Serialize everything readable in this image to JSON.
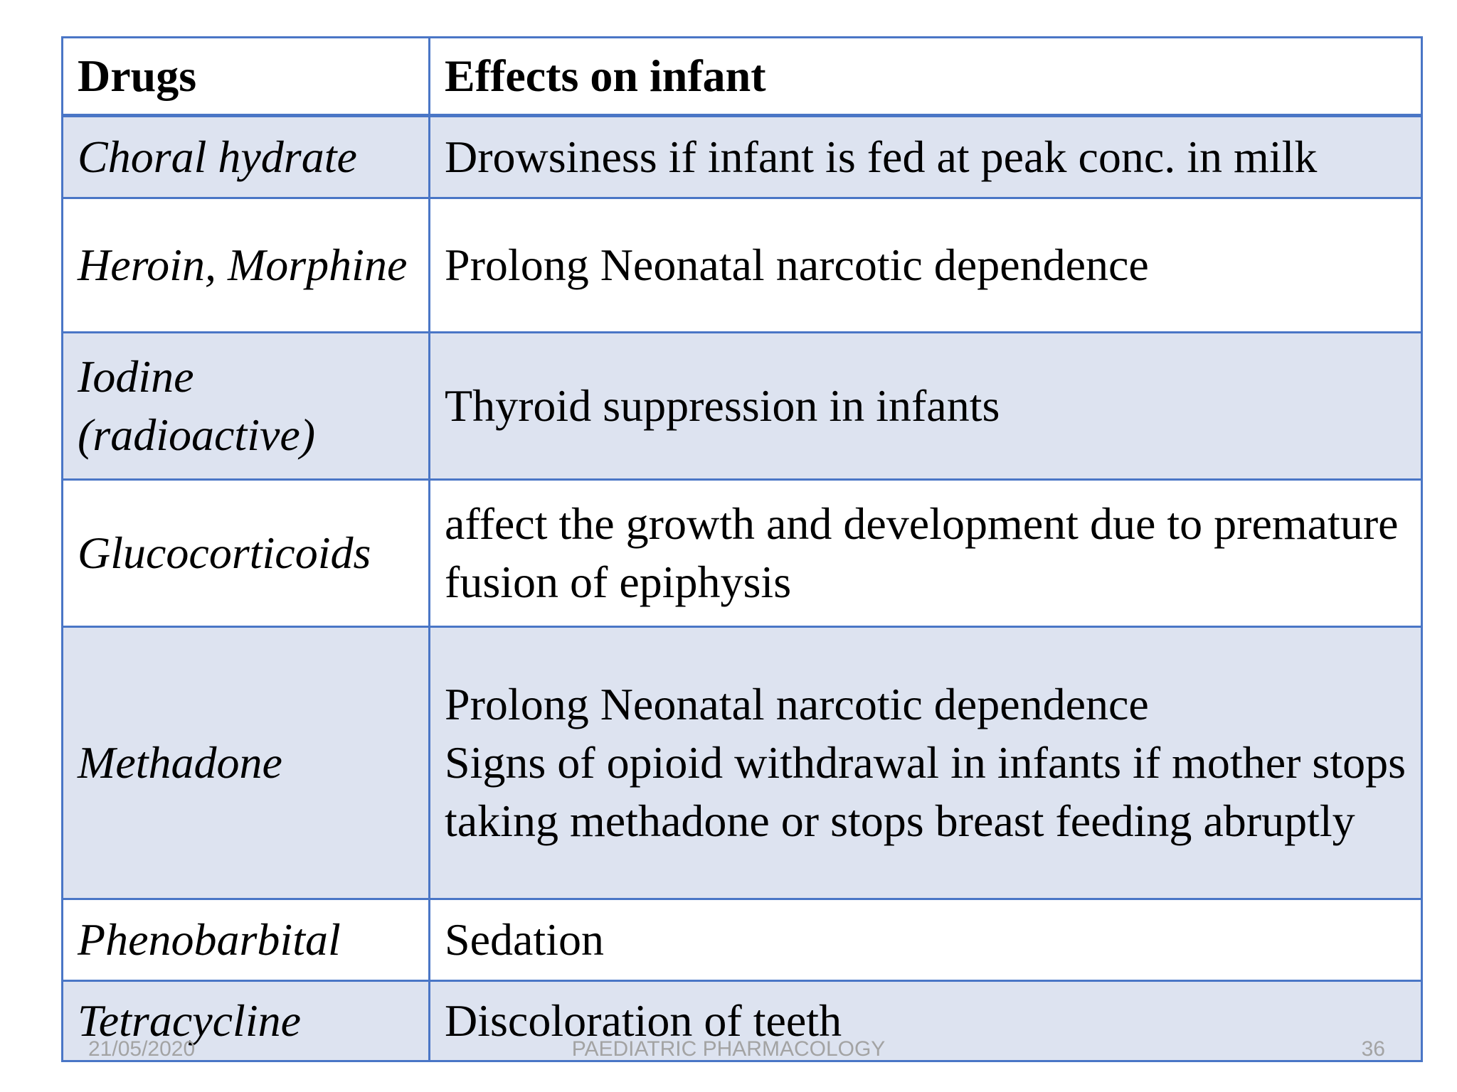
{
  "table": {
    "headers": [
      "Drugs",
      "Effects on infant"
    ],
    "rows": [
      {
        "drug": "Choral hydrate",
        "effects": [
          "Drowsiness if infant is fed at peak conc. in milk"
        ]
      },
      {
        "drug": "Heroin, Morphine",
        "effects": [
          "Prolong Neonatal narcotic dependence"
        ]
      },
      {
        "drug": "Iodine (radioactive)",
        "effects": [
          "Thyroid suppression in infants"
        ]
      },
      {
        "drug": "Glucocorticoids",
        "effects": [
          "affect the growth and development due to premature fusion of epiphysis"
        ]
      },
      {
        "drug": "Methadone",
        "effects": [
          "Prolong Neonatal narcotic dependence",
          "Signs of opioid withdrawal in infants if mother stops taking methadone or stops breast feeding abruptly"
        ]
      },
      {
        "drug": "Phenobarbital",
        "effects": [
          "Sedation"
        ]
      },
      {
        "drug": "Tetracycline",
        "effects": [
          "Discoloration of teeth"
        ]
      }
    ]
  },
  "footer": {
    "date": "21/05/2020",
    "title": "PAEDIATRIC PHARMACOLOGY",
    "page_number": "36"
  },
  "colors": {
    "border": "#4a76c6",
    "shaded_row": "#dde3f0",
    "footer_text": "#a3a3a3"
  }
}
